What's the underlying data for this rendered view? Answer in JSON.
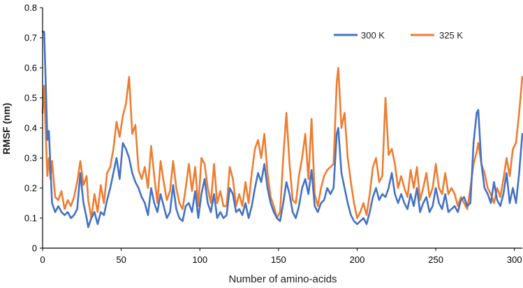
{
  "chart_data": {
    "type": "line",
    "title": "",
    "xlabel": "Number of amino-acids",
    "ylabel": "RMSF (nm)",
    "xlim": [
      0,
      305
    ],
    "ylim": [
      0,
      0.8
    ],
    "xticks": [
      "0",
      "50",
      "100",
      "150",
      "200",
      "250",
      "300"
    ],
    "yticks": [
      "0",
      "0.1",
      "0.2",
      "0.3",
      "0.4",
      "0.5",
      "0.6",
      "0.7",
      "0.8"
    ],
    "grid": false,
    "legend": "top-right",
    "colors": {
      "s300": "#4472c4",
      "s325": "#ed7d31"
    },
    "series": [
      {
        "name": "300 K",
        "color": "#4472c4",
        "points": [
          [
            0,
            0.72
          ],
          [
            1,
            0.72
          ],
          [
            2,
            0.55
          ],
          [
            3,
            0.36
          ],
          [
            4,
            0.39
          ],
          [
            5,
            0.27
          ],
          [
            6,
            0.15
          ],
          [
            8,
            0.12
          ],
          [
            10,
            0.14
          ],
          [
            12,
            0.12
          ],
          [
            14,
            0.11
          ],
          [
            16,
            0.12
          ],
          [
            18,
            0.1
          ],
          [
            20,
            0.11
          ],
          [
            22,
            0.13
          ],
          [
            24,
            0.25
          ],
          [
            26,
            0.15
          ],
          [
            28,
            0.1
          ],
          [
            29,
            0.07
          ],
          [
            31,
            0.1
          ],
          [
            33,
            0.12
          ],
          [
            35,
            0.08
          ],
          [
            37,
            0.12
          ],
          [
            39,
            0.11
          ],
          [
            41,
            0.16
          ],
          [
            43,
            0.2
          ],
          [
            45,
            0.25
          ],
          [
            47,
            0.3
          ],
          [
            49,
            0.23
          ],
          [
            51,
            0.35
          ],
          [
            53,
            0.33
          ],
          [
            55,
            0.3
          ],
          [
            57,
            0.25
          ],
          [
            59,
            0.22
          ],
          [
            61,
            0.2
          ],
          [
            63,
            0.17
          ],
          [
            65,
            0.15
          ],
          [
            67,
            0.11
          ],
          [
            69,
            0.2
          ],
          [
            71,
            0.15
          ],
          [
            73,
            0.12
          ],
          [
            75,
            0.18
          ],
          [
            77,
            0.14
          ],
          [
            79,
            0.1
          ],
          [
            81,
            0.12
          ],
          [
            83,
            0.21
          ],
          [
            85,
            0.13
          ],
          [
            87,
            0.1
          ],
          [
            89,
            0.09
          ],
          [
            91,
            0.14
          ],
          [
            93,
            0.15
          ],
          [
            95,
            0.12
          ],
          [
            97,
            0.19
          ],
          [
            99,
            0.1
          ],
          [
            101,
            0.18
          ],
          [
            103,
            0.23
          ],
          [
            105,
            0.15
          ],
          [
            107,
            0.12
          ],
          [
            109,
            0.18
          ],
          [
            111,
            0.1
          ],
          [
            113,
            0.12
          ],
          [
            115,
            0.1
          ],
          [
            117,
            0.11
          ],
          [
            119,
            0.2
          ],
          [
            121,
            0.18
          ],
          [
            123,
            0.12
          ],
          [
            125,
            0.13
          ],
          [
            127,
            0.11
          ],
          [
            129,
            0.15
          ],
          [
            131,
            0.1
          ],
          [
            133,
            0.14
          ],
          [
            135,
            0.2
          ],
          [
            137,
            0.25
          ],
          [
            139,
            0.22
          ],
          [
            141,
            0.28
          ],
          [
            143,
            0.2
          ],
          [
            145,
            0.15
          ],
          [
            147,
            0.12
          ],
          [
            149,
            0.1
          ],
          [
            151,
            0.09
          ],
          [
            153,
            0.15
          ],
          [
            155,
            0.22
          ],
          [
            157,
            0.18
          ],
          [
            159,
            0.12
          ],
          [
            161,
            0.1
          ],
          [
            163,
            0.14
          ],
          [
            165,
            0.2
          ],
          [
            167,
            0.23
          ],
          [
            169,
            0.18
          ],
          [
            171,
            0.26
          ],
          [
            173,
            0.14
          ],
          [
            175,
            0.12
          ],
          [
            177,
            0.15
          ],
          [
            179,
            0.16
          ],
          [
            181,
            0.2
          ],
          [
            183,
            0.18
          ],
          [
            185,
            0.2
          ],
          [
            187,
            0.38
          ],
          [
            188,
            0.4
          ],
          [
            190,
            0.25
          ],
          [
            192,
            0.2
          ],
          [
            194,
            0.15
          ],
          [
            196,
            0.11
          ],
          [
            198,
            0.09
          ],
          [
            200,
            0.08
          ],
          [
            202,
            0.09
          ],
          [
            204,
            0.1
          ],
          [
            206,
            0.08
          ],
          [
            208,
            0.12
          ],
          [
            210,
            0.17
          ],
          [
            212,
            0.2
          ],
          [
            214,
            0.16
          ],
          [
            216,
            0.18
          ],
          [
            218,
            0.17
          ],
          [
            220,
            0.2
          ],
          [
            222,
            0.25
          ],
          [
            224,
            0.18
          ],
          [
            226,
            0.15
          ],
          [
            228,
            0.18
          ],
          [
            230,
            0.15
          ],
          [
            232,
            0.13
          ],
          [
            234,
            0.18
          ],
          [
            236,
            0.14
          ],
          [
            238,
            0.2
          ],
          [
            240,
            0.12
          ],
          [
            242,
            0.15
          ],
          [
            244,
            0.17
          ],
          [
            246,
            0.12
          ],
          [
            248,
            0.14
          ],
          [
            250,
            0.2
          ],
          [
            252,
            0.15
          ],
          [
            254,
            0.13
          ],
          [
            256,
            0.18
          ],
          [
            258,
            0.12
          ],
          [
            260,
            0.13
          ],
          [
            262,
            0.14
          ],
          [
            264,
            0.12
          ],
          [
            266,
            0.16
          ],
          [
            268,
            0.17
          ],
          [
            270,
            0.14
          ],
          [
            272,
            0.15
          ],
          [
            274,
            0.35
          ],
          [
            276,
            0.45
          ],
          [
            277,
            0.46
          ],
          [
            279,
            0.28
          ],
          [
            281,
            0.2
          ],
          [
            283,
            0.18
          ],
          [
            285,
            0.15
          ],
          [
            287,
            0.22
          ],
          [
            289,
            0.16
          ],
          [
            291,
            0.14
          ],
          [
            293,
            0.18
          ],
          [
            295,
            0.25
          ],
          [
            297,
            0.15
          ],
          [
            299,
            0.2
          ],
          [
            301,
            0.15
          ],
          [
            303,
            0.25
          ],
          [
            305,
            0.38
          ]
        ]
      },
      {
        "name": "325 K",
        "color": "#ed7d31",
        "points": [
          [
            0,
            0.45
          ],
          [
            1,
            0.54
          ],
          [
            2,
            0.38
          ],
          [
            3,
            0.24
          ],
          [
            4,
            0.3
          ],
          [
            5,
            0.23
          ],
          [
            6,
            0.29
          ],
          [
            8,
            0.17
          ],
          [
            10,
            0.16
          ],
          [
            12,
            0.19
          ],
          [
            14,
            0.13
          ],
          [
            16,
            0.16
          ],
          [
            18,
            0.14
          ],
          [
            20,
            0.17
          ],
          [
            22,
            0.22
          ],
          [
            24,
            0.29
          ],
          [
            26,
            0.21
          ],
          [
            28,
            0.24
          ],
          [
            29,
            0.16
          ],
          [
            31,
            0.1
          ],
          [
            33,
            0.18
          ],
          [
            35,
            0.12
          ],
          [
            37,
            0.21
          ],
          [
            39,
            0.15
          ],
          [
            41,
            0.25
          ],
          [
            43,
            0.27
          ],
          [
            45,
            0.33
          ],
          [
            47,
            0.42
          ],
          [
            49,
            0.37
          ],
          [
            51,
            0.44
          ],
          [
            53,
            0.48
          ],
          [
            55,
            0.57
          ],
          [
            57,
            0.38
          ],
          [
            59,
            0.41
          ],
          [
            61,
            0.26
          ],
          [
            63,
            0.23
          ],
          [
            65,
            0.27
          ],
          [
            67,
            0.2
          ],
          [
            69,
            0.34
          ],
          [
            71,
            0.24
          ],
          [
            73,
            0.15
          ],
          [
            75,
            0.29
          ],
          [
            77,
            0.22
          ],
          [
            79,
            0.16
          ],
          [
            81,
            0.19
          ],
          [
            83,
            0.29
          ],
          [
            85,
            0.2
          ],
          [
            87,
            0.15
          ],
          [
            89,
            0.13
          ],
          [
            91,
            0.2
          ],
          [
            93,
            0.28
          ],
          [
            95,
            0.19
          ],
          [
            97,
            0.27
          ],
          [
            99,
            0.14
          ],
          [
            101,
            0.3
          ],
          [
            103,
            0.28
          ],
          [
            105,
            0.2
          ],
          [
            107,
            0.15
          ],
          [
            109,
            0.28
          ],
          [
            111,
            0.15
          ],
          [
            113,
            0.19
          ],
          [
            115,
            0.14
          ],
          [
            117,
            0.14
          ],
          [
            119,
            0.27
          ],
          [
            121,
            0.23
          ],
          [
            123,
            0.14
          ],
          [
            125,
            0.18
          ],
          [
            127,
            0.14
          ],
          [
            129,
            0.22
          ],
          [
            131,
            0.15
          ],
          [
            133,
            0.25
          ],
          [
            135,
            0.33
          ],
          [
            137,
            0.36
          ],
          [
            139,
            0.3
          ],
          [
            141,
            0.38
          ],
          [
            143,
            0.25
          ],
          [
            145,
            0.17
          ],
          [
            147,
            0.14
          ],
          [
            149,
            0.1
          ],
          [
            151,
            0.12
          ],
          [
            153,
            0.3
          ],
          [
            155,
            0.45
          ],
          [
            157,
            0.28
          ],
          [
            159,
            0.16
          ],
          [
            161,
            0.15
          ],
          [
            163,
            0.24
          ],
          [
            165,
            0.3
          ],
          [
            167,
            0.38
          ],
          [
            169,
            0.23
          ],
          [
            171,
            0.43
          ],
          [
            173,
            0.18
          ],
          [
            175,
            0.14
          ],
          [
            177,
            0.2
          ],
          [
            179,
            0.24
          ],
          [
            181,
            0.26
          ],
          [
            183,
            0.27
          ],
          [
            185,
            0.28
          ],
          [
            187,
            0.55
          ],
          [
            188,
            0.6
          ],
          [
            190,
            0.4
          ],
          [
            192,
            0.45
          ],
          [
            194,
            0.3
          ],
          [
            196,
            0.22
          ],
          [
            198,
            0.15
          ],
          [
            200,
            0.1
          ],
          [
            202,
            0.12
          ],
          [
            204,
            0.15
          ],
          [
            206,
            0.11
          ],
          [
            208,
            0.18
          ],
          [
            210,
            0.27
          ],
          [
            212,
            0.3
          ],
          [
            214,
            0.22
          ],
          [
            216,
            0.24
          ],
          [
            218,
            0.5
          ],
          [
            220,
            0.31
          ],
          [
            222,
            0.33
          ],
          [
            224,
            0.28
          ],
          [
            226,
            0.2
          ],
          [
            228,
            0.24
          ],
          [
            230,
            0.2
          ],
          [
            232,
            0.17
          ],
          [
            234,
            0.26
          ],
          [
            236,
            0.2
          ],
          [
            238,
            0.27
          ],
          [
            240,
            0.16
          ],
          [
            242,
            0.2
          ],
          [
            244,
            0.25
          ],
          [
            246,
            0.17
          ],
          [
            248,
            0.2
          ],
          [
            250,
            0.28
          ],
          [
            252,
            0.2
          ],
          [
            254,
            0.18
          ],
          [
            256,
            0.25
          ],
          [
            258,
            0.18
          ],
          [
            260,
            0.2
          ],
          [
            262,
            0.18
          ],
          [
            264,
            0.14
          ],
          [
            266,
            0.17
          ],
          [
            268,
            0.15
          ],
          [
            270,
            0.13
          ],
          [
            272,
            0.2
          ],
          [
            274,
            0.28
          ],
          [
            276,
            0.32
          ],
          [
            277,
            0.35
          ],
          [
            279,
            0.28
          ],
          [
            281,
            0.25
          ],
          [
            283,
            0.2
          ],
          [
            285,
            0.18
          ],
          [
            287,
            0.15
          ],
          [
            289,
            0.2
          ],
          [
            291,
            0.17
          ],
          [
            293,
            0.23
          ],
          [
            295,
            0.3
          ],
          [
            297,
            0.24
          ],
          [
            299,
            0.33
          ],
          [
            301,
            0.35
          ],
          [
            303,
            0.45
          ],
          [
            305,
            0.57
          ]
        ]
      }
    ]
  }
}
